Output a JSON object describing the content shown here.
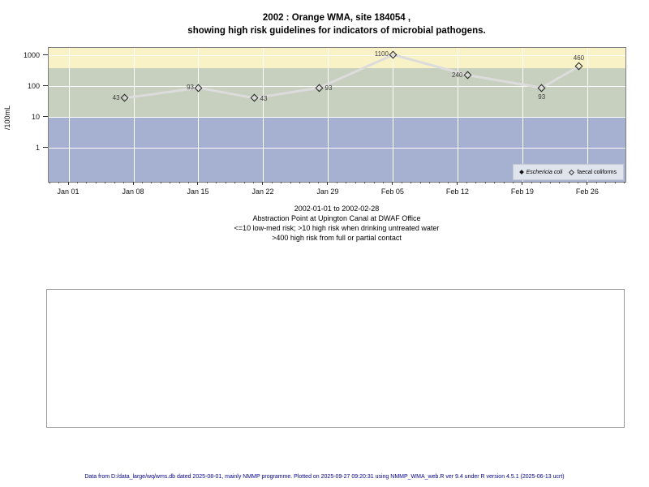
{
  "title": {
    "line1": "2002 : Orange WMA, site 184054 ,",
    "line2": "showing high risk guidelines for indicators of microbial pathogens."
  },
  "chart_data": {
    "type": "line",
    "title": "2002 : Orange WMA, site 184054 , showing high risk guidelines for indicators of microbial pathogens.",
    "ylabel": "/100mL",
    "y_scale": "log",
    "ylim": [
      0.083,
      1830
    ],
    "y_ticks": [
      1000,
      100,
      10,
      1
    ],
    "x_ticks": [
      {
        "label": "Jan 01",
        "day": 0
      },
      {
        "label": "Jan 08",
        "day": 7
      },
      {
        "label": "Jan 15",
        "day": 14
      },
      {
        "label": "Jan 22",
        "day": 21
      },
      {
        "label": "Jan 29",
        "day": 28
      },
      {
        "label": "Feb 05",
        "day": 35
      },
      {
        "label": "Feb 12",
        "day": 42
      },
      {
        "label": "Feb 19",
        "day": 49
      },
      {
        "label": "Feb 26",
        "day": 56
      }
    ],
    "x_axis": {
      "start_frac": 0.0352,
      "day_frac": 0.01607,
      "minor_tick_day_range": [
        -2,
        60
      ]
    },
    "grid": "white, weekly vertical and decade horizontal lines",
    "bands": [
      {
        "meaning": ">400 high risk from full or partial contact",
        "from": 400,
        "to": 1830,
        "color": "#f8f2c6"
      },
      {
        "meaning": ">10 high risk when drinking untreated water",
        "from": 10,
        "to": 400,
        "color": "#c7cfbf"
      },
      {
        "meaning": "<=10 low-med risk",
        "from": 0.083,
        "to": 10,
        "color": "#a6b1d1"
      }
    ],
    "series": [
      {
        "name": "faecal coliforms",
        "marker": "open-diamond",
        "line_color": "#dcdcdc",
        "points": [
          {
            "date": "2002-01-07",
            "day": 6,
            "value": 43,
            "label_pos": "left"
          },
          {
            "date": "2002-01-15",
            "day": 14,
            "value": 93,
            "label_pos": "left"
          },
          {
            "date": "2002-01-21",
            "day": 20,
            "value": 43,
            "label_pos": "right"
          },
          {
            "date": "2002-01-28",
            "day": 27,
            "value": 93,
            "label_pos": "right"
          },
          {
            "date": "2002-02-05",
            "day": 35,
            "value": 1100,
            "label_pos": "left"
          },
          {
            "date": "2002-02-13",
            "day": 43,
            "value": 240,
            "label_pos": "left"
          },
          {
            "date": "2002-02-21",
            "day": 51,
            "value": 93,
            "label_pos": "below"
          },
          {
            "date": "2002-02-25",
            "day": 55,
            "value": 460,
            "label_pos": "above"
          }
        ]
      }
    ],
    "legend": {
      "position": "bottom-right-inside",
      "items": [
        {
          "label": "Eschericia coli",
          "marker": "filled-diamond",
          "italic": true
        },
        {
          "label": "faecal coliforms",
          "marker": "open-diamond",
          "italic": false
        }
      ]
    }
  },
  "subtitle": {
    "line1": "2002-01-01 to 2002-02-28",
    "line2": "Abstraction Point at Upington Canal at DWAF Office",
    "line3": "<=10 low-med risk; >10 high risk when drinking untreated water",
    "line4": ">400 high risk from full or partial contact"
  },
  "footer": {
    "text": "Data from D:/data_large/wq/wms.db dated 2025-08-01, mainly NMMP programme. Plotted on 2025-09-27 09:20:31 using NMMP_WMA_web.R ver 9.4 under R version 4.5.1 (2025-06-13 ucrt)"
  },
  "colors": {
    "band_high_contact": "#f8f2c6",
    "band_high_drinking": "#c7cfbf",
    "band_low_med": "#a6b1d1",
    "series_line": "#dcdcdc",
    "grid": "#ffffff",
    "footer_text": "#00008b"
  }
}
